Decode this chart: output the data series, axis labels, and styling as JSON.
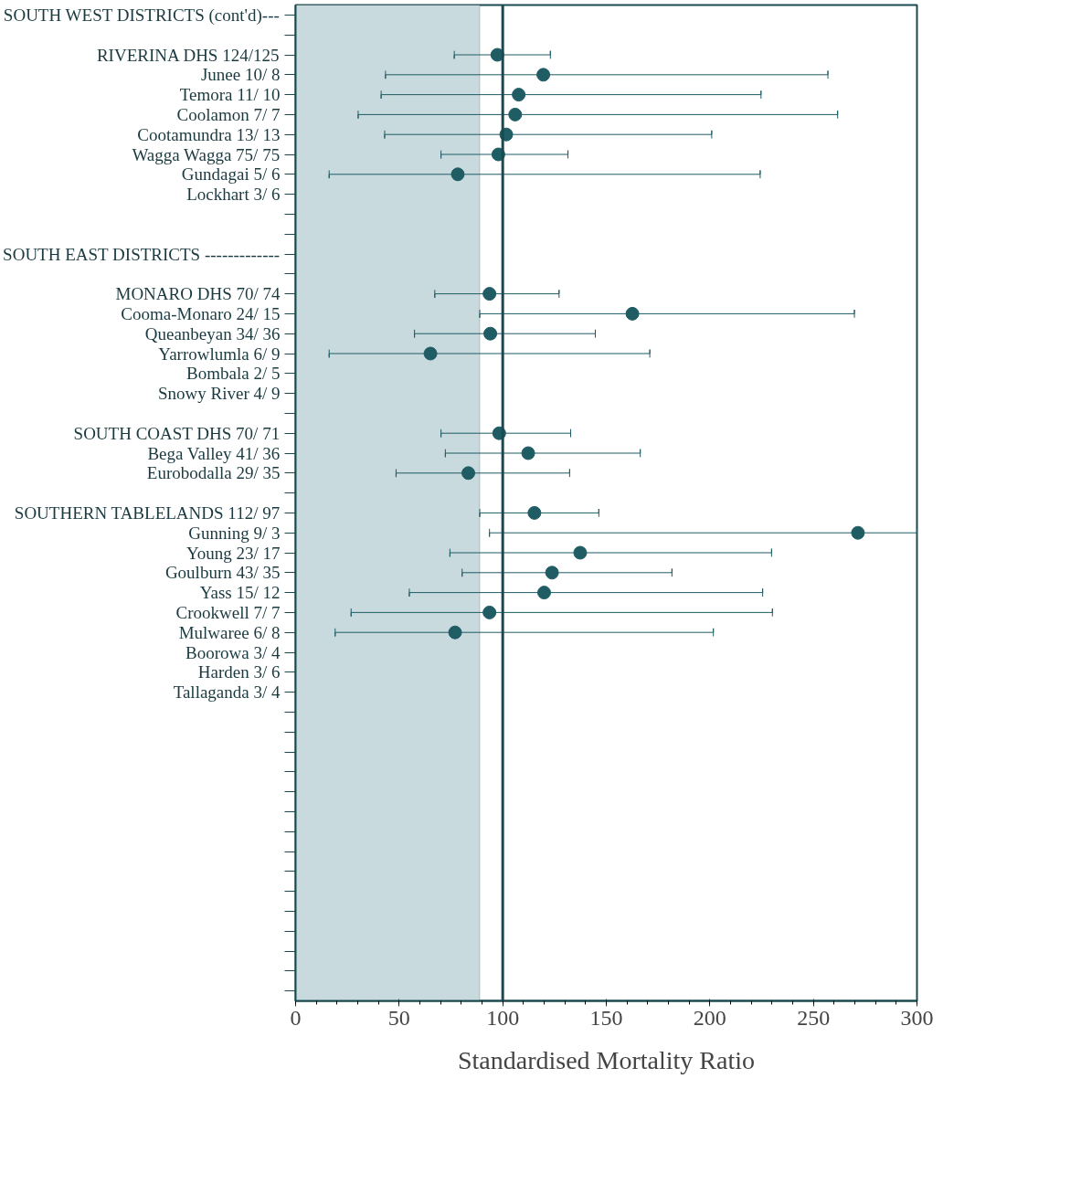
{
  "chart_data": {
    "type": "scatter",
    "orientation": "horizontal",
    "xlabel": "Standardised Mortality Ratio",
    "categories": [
      "SOUTH WEST DISTRICTS (cont'd)---",
      null,
      "RIVERINA DHS 124/125",
      "Junee 10/ 8",
      "Temora 11/ 10",
      "Coolamon 7/ 7",
      "Cootamundra 13/ 13",
      "Wagga Wagga 75/ 75",
      "Gundagai 5/ 6",
      "Lockhart 3/ 6",
      null,
      null,
      "SOUTH EAST DISTRICTS -------------",
      null,
      "MONARO DHS 70/ 74",
      "Cooma-Monaro 24/ 15",
      "Queanbeyan 34/ 36",
      "Yarrowlumla 6/ 9",
      "Bombala 2/ 5",
      "Snowy River 4/ 9",
      null,
      "SOUTH COAST DHS 70/ 71",
      "Bega Valley 41/ 36",
      "Eurobodalla 29/ 35",
      null,
      "SOUTHERN TABLELANDS 112/ 97",
      "Gunning 9/ 3",
      "Young 23/ 17",
      "Goulburn 43/ 35",
      "Yass 15/ 12",
      "Crookwell 7/ 7",
      "Mulwaree 6/ 8",
      "Boorowa 3/ 4",
      "Harden 3/ 6",
      "Tallaganda 3/ 4",
      null,
      null,
      null,
      null,
      null,
      null,
      null,
      null,
      null,
      null,
      null,
      null,
      null,
      null,
      null
    ],
    "values": [
      null,
      null,
      97.4,
      119.6,
      107.7,
      106,
      101.7,
      97.9,
      78.3,
      null,
      null,
      null,
      null,
      null,
      93.6,
      162.6,
      94,
      65.1,
      null,
      null,
      null,
      98.3,
      112.3,
      83.4,
      null,
      115.3,
      271.5,
      137.4,
      123.8,
      120,
      93.6,
      77,
      null,
      null,
      null,
      null,
      null,
      null,
      null,
      null,
      null,
      null,
      null,
      null,
      null,
      null,
      null,
      null,
      null,
      null
    ],
    "errors": [
      null,
      null,
      [
        76.6,
        123
      ],
      [
        43.4,
        257
      ],
      [
        41.3,
        224.7
      ],
      [
        30.2,
        261.7
      ],
      [
        43,
        200.9
      ],
      [
        70.2,
        131.5
      ],
      [
        16.2,
        224.3
      ],
      null,
      null,
      null,
      null,
      null,
      [
        67.2,
        127.2
      ],
      [
        88.9,
        269.8
      ],
      [
        57.4,
        144.7
      ],
      [
        16.2,
        171
      ],
      null,
      null,
      null,
      [
        70.2,
        132.8
      ],
      [
        72.3,
        166.4
      ],
      [
        48.5,
        132.3
      ],
      null,
      [
        88.9,
        146.4
      ],
      [
        93.6,
        300
      ],
      [
        74.5,
        229.8
      ],
      [
        80.4,
        181.7
      ],
      [
        54.9,
        225.5
      ],
      [
        26.8,
        230.2
      ],
      [
        19.1,
        201.7
      ],
      null,
      null,
      null,
      null,
      null,
      null,
      null,
      null,
      null,
      null,
      null,
      null,
      null,
      null,
      null,
      null,
      null,
      null
    ],
    "color": "#1f5c64",
    "marker": "circle",
    "grid": false,
    "xlim": [
      0,
      300
    ],
    "xticks": [
      0,
      50,
      100,
      150,
      200,
      250,
      300
    ],
    "ref_lines": [
      {
        "axis": "x",
        "value": 100,
        "color": "#1a4a50"
      }
    ],
    "bands": [
      {
        "axis": "x",
        "from": 0,
        "to": 88.9,
        "color": "#c8dadd"
      }
    ]
  }
}
